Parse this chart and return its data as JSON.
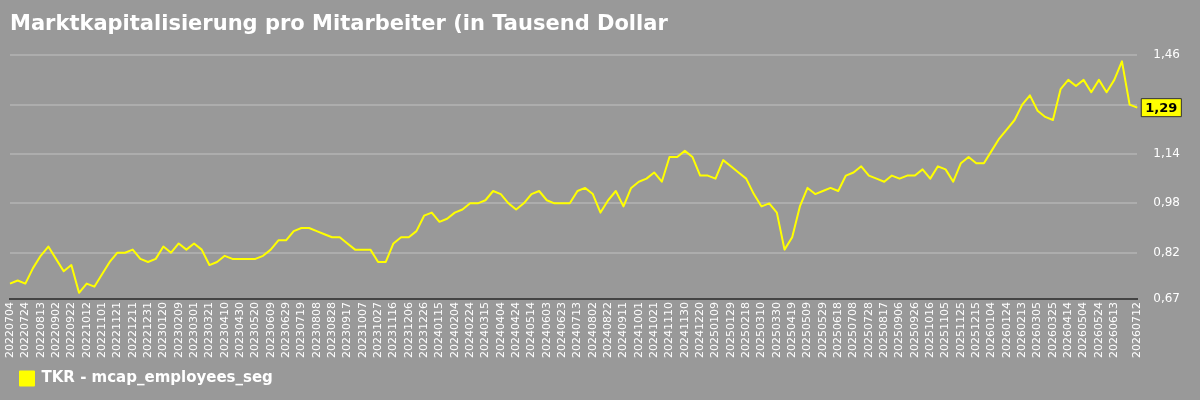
{
  "chart_data": {
    "type": "line",
    "title": "Marktkapitalisierung pro Mitarbeiter (in Tausend Dollar",
    "categories": [
      "20220704",
      null,
      "20220724",
      null,
      "20220813",
      null,
      "20220902",
      null,
      "20220922",
      null,
      "20221012",
      null,
      "20221101",
      null,
      "20221121",
      null,
      "20221211",
      null,
      "20221231",
      null,
      "20230120",
      null,
      "20230209",
      null,
      "20230301",
      null,
      "20230321",
      null,
      "20230410",
      null,
      "20230430",
      null,
      "20230520",
      null,
      "20230609",
      null,
      "20230629",
      null,
      "20230719",
      null,
      "20230808",
      null,
      "20230828",
      null,
      "20230917",
      null,
      "20231007",
      null,
      "20231027",
      null,
      "20231116",
      null,
      "20231206",
      null,
      "20231226",
      null,
      "20240115",
      null,
      "20240204",
      null,
      "20240224",
      null,
      "20240315",
      null,
      "20240404",
      null,
      "20240424",
      null,
      "20240514",
      null,
      "20240603",
      null,
      "20240623",
      null,
      "20240713",
      null,
      "20240802",
      null,
      "20240822",
      null,
      "20240911",
      null,
      "20241001",
      null,
      "20241021",
      null,
      "20241110",
      null,
      "20241130",
      null,
      "20241220",
      null,
      "20250109",
      null,
      "20250129",
      null,
      "20250218",
      null,
      "20250310",
      null,
      "20250330",
      null,
      "20250419",
      null,
      "20250509",
      null,
      "20250529",
      null,
      "20250618",
      null,
      "20250708",
      null,
      "20250728",
      null,
      "20250817",
      null,
      "20250906",
      null,
      "20250926",
      null,
      "20251016",
      null,
      "20251105",
      null,
      "20251125",
      null,
      "20251215",
      null,
      "20260104",
      null,
      "20260124",
      null,
      "20260213",
      null,
      "20260305",
      null,
      "20260325",
      null,
      "20260414",
      null,
      "20260504",
      null,
      "20260524",
      null,
      "20260613",
      null,
      null,
      "20260712"
    ],
    "series": [
      {
        "name": "TKR - mcap_employees_seg",
        "color": "#ffff00",
        "values": [
          0.72,
          0.73,
          0.72,
          0.77,
          0.81,
          0.84,
          0.8,
          0.76,
          0.78,
          0.69,
          0.72,
          0.71,
          0.75,
          0.79,
          0.82,
          0.82,
          0.83,
          0.8,
          0.79,
          0.8,
          0.84,
          0.82,
          0.85,
          0.83,
          0.85,
          0.83,
          0.78,
          0.79,
          0.81,
          0.8,
          0.8,
          0.8,
          0.8,
          0.81,
          0.83,
          0.86,
          0.86,
          0.89,
          0.9,
          0.9,
          0.89,
          0.88,
          0.87,
          0.87,
          0.85,
          0.83,
          0.83,
          0.83,
          0.79,
          0.79,
          0.85,
          0.87,
          0.87,
          0.89,
          0.94,
          0.95,
          0.92,
          0.93,
          0.95,
          0.96,
          0.98,
          0.98,
          0.99,
          1.02,
          1.01,
          0.98,
          0.96,
          0.98,
          1.01,
          1.02,
          0.99,
          0.98,
          0.98,
          0.98,
          1.02,
          1.03,
          1.01,
          0.95,
          0.99,
          1.02,
          0.97,
          1.03,
          1.05,
          1.06,
          1.08,
          1.05,
          1.13,
          1.13,
          1.15,
          1.13,
          1.07,
          1.07,
          1.06,
          1.12,
          1.1,
          1.08,
          1.06,
          1.01,
          0.97,
          0.98,
          0.95,
          0.83,
          0.87,
          0.97,
          1.03,
          1.01,
          1.02,
          1.03,
          1.02,
          1.07,
          1.08,
          1.1,
          1.07,
          1.06,
          1.05,
          1.07,
          1.06,
          1.07,
          1.07,
          1.09,
          1.06,
          1.1,
          1.09,
          1.05,
          1.11,
          1.13,
          1.11,
          1.11,
          1.15,
          1.19,
          1.22,
          1.25,
          1.3,
          1.33,
          1.28,
          1.26,
          1.25,
          1.35,
          1.38,
          1.36,
          1.38,
          1.34,
          1.38,
          1.34,
          1.38,
          1.44,
          1.3,
          1.29
        ]
      }
    ],
    "ylim": [
      0.67,
      1.46
    ],
    "yticks": [
      {
        "value": 0.67,
        "label": "0,67"
      },
      {
        "value": 0.82,
        "label": "0,82"
      },
      {
        "value": 0.98,
        "label": "0,98"
      },
      {
        "value": 1.14,
        "label": "1,14"
      },
      {
        "value": 1.3,
        "label": null
      },
      {
        "value": 1.46,
        "label": "1,46"
      }
    ],
    "annotations": [
      {
        "text": "1,29",
        "x": "20260712",
        "y": 1.29
      }
    ],
    "grid": "y",
    "legend": "bottom left"
  }
}
